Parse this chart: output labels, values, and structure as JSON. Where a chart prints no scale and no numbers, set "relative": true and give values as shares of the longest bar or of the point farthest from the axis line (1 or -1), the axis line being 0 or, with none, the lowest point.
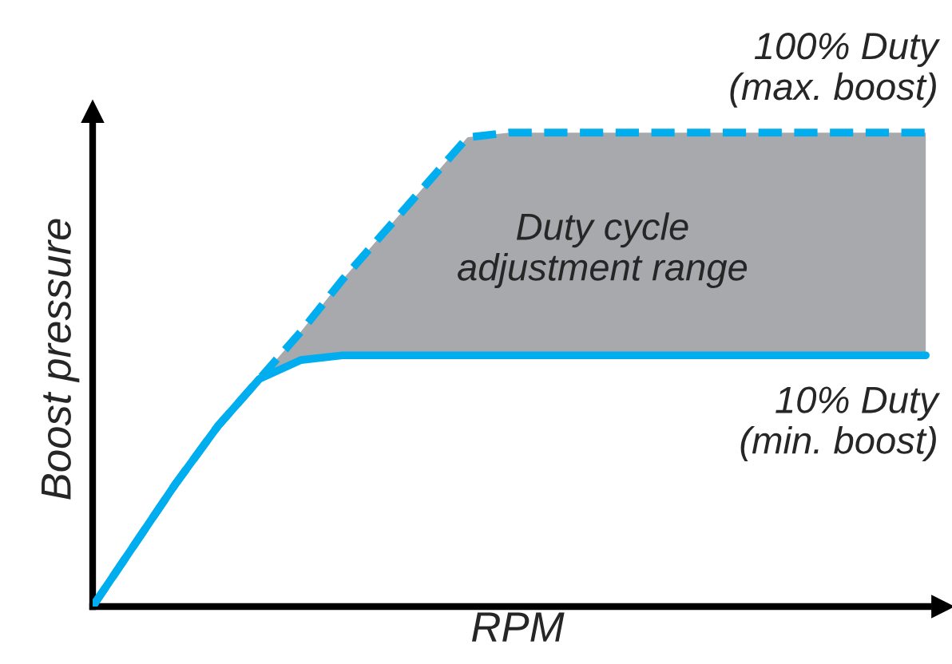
{
  "chart_data": {
    "type": "line",
    "relative": true,
    "xlabel": "RPM",
    "ylabel": "Boost pressure",
    "categories": [
      null,
      null,
      null,
      null,
      null,
      null,
      null,
      null,
      null,
      null,
      null,
      null,
      null,
      null,
      null,
      null,
      null,
      null,
      null,
      null,
      null
    ],
    "series": [
      {
        "color": "#00aeef",
        "line_style": "solid",
        "values": [
          0,
          0.13,
          0.26,
          0.38,
          0.48,
          0.52,
          0.53,
          0.53,
          0.53,
          0.53,
          0.53,
          0.53,
          0.53,
          0.53,
          0.53,
          0.53,
          0.53,
          0.53,
          0.53,
          0.53,
          0.53
        ]
      },
      {
        "color": "#00aeef",
        "line_style": "dashed",
        "values": [
          0,
          0.13,
          0.26,
          0.38,
          0.48,
          0.58,
          0.69,
          0.79,
          0.89,
          0.99,
          1,
          1,
          1,
          1,
          1,
          1,
          1,
          1,
          1,
          1,
          1
        ],
        "lower": [
          0,
          0.13,
          0.26,
          0.38,
          0.48,
          0.52,
          0.53,
          0.53,
          0.53,
          0.53,
          0.53,
          0.53,
          0.53,
          0.53,
          0.53,
          0.53,
          0.53,
          0.53,
          0.53,
          0.53,
          0.53
        ],
        "upper": [
          0,
          0.13,
          0.26,
          0.38,
          0.48,
          0.58,
          0.69,
          0.79,
          0.89,
          0.99,
          1,
          1,
          1,
          1,
          1,
          1,
          1,
          1,
          1,
          1,
          1
        ]
      }
    ],
    "annotations": [
      "100% Duty\n(max. boost)",
      "Duty cycle\nadjustment range",
      "10% Duty\n(min. boost)"
    ]
  }
}
